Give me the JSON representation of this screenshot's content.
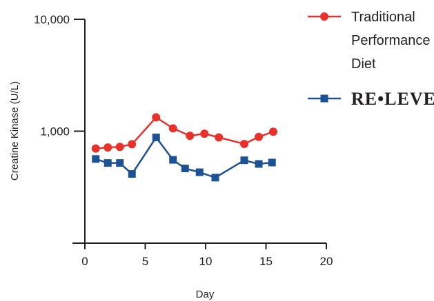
{
  "chart_data": {
    "type": "line",
    "xlabel": "Day",
    "ylabel": "Creatine Kinase (U/L)",
    "xlim": [
      0,
      20
    ],
    "ylim": [
      100,
      10000
    ],
    "yscale": "log",
    "x_ticks": [
      "0",
      "5",
      "10",
      "15",
      "20"
    ],
    "y_ticks": [
      "10,000",
      "1,000"
    ],
    "grid": false,
    "legend_position": "top-right",
    "series": [
      {
        "name": "Traditional Performance Diet",
        "name_lines": [
          "Traditional",
          "Performance",
          "Diet"
        ],
        "color": "#e8312a",
        "marker": "circle",
        "points": [
          {
            "x": 0.9,
            "y": 700
          },
          {
            "x": 1.9,
            "y": 715
          },
          {
            "x": 2.9,
            "y": 725
          },
          {
            "x": 3.9,
            "y": 765
          },
          {
            "x": 5.9,
            "y": 1330
          },
          {
            "x": 7.3,
            "y": 1060
          },
          {
            "x": 8.7,
            "y": 910
          },
          {
            "x": 9.9,
            "y": 950
          },
          {
            "x": 11.1,
            "y": 880
          },
          {
            "x": 13.2,
            "y": 770
          },
          {
            "x": 14.4,
            "y": 890
          },
          {
            "x": 15.6,
            "y": 990
          }
        ]
      },
      {
        "name": "RE•LEVE",
        "color": "#1c5193",
        "marker": "square",
        "points": [
          {
            "x": 0.9,
            "y": 565
          },
          {
            "x": 1.9,
            "y": 520
          },
          {
            "x": 2.9,
            "y": 520
          },
          {
            "x": 3.9,
            "y": 415
          },
          {
            "x": 5.9,
            "y": 880
          },
          {
            "x": 7.3,
            "y": 555
          },
          {
            "x": 8.3,
            "y": 465
          },
          {
            "x": 9.5,
            "y": 430
          },
          {
            "x": 10.8,
            "y": 385
          },
          {
            "x": 13.2,
            "y": 550
          },
          {
            "x": 14.4,
            "y": 510
          },
          {
            "x": 15.5,
            "y": 525
          }
        ]
      }
    ]
  }
}
